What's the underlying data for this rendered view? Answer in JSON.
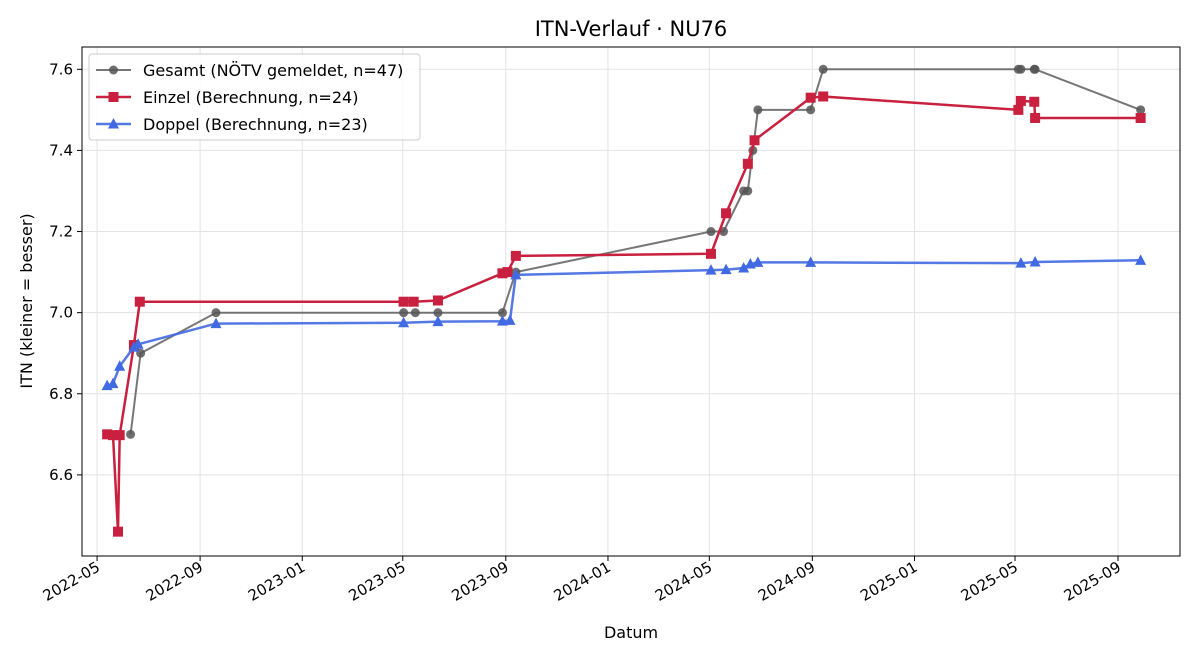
{
  "chart_data": {
    "type": "line",
    "title": "ITN-Verlauf · NU76",
    "xlabel": "Datum",
    "ylabel": "ITN  (kleiner = besser)",
    "x_type": "date",
    "xlim": [
      "2022-04-13",
      "2025-11-14"
    ],
    "ylim": [
      6.4,
      7.655
    ],
    "x_ticks": [
      "2022-05-01",
      "2022-09-01",
      "2023-01-01",
      "2023-05-01",
      "2023-09-01",
      "2024-01-01",
      "2024-05-01",
      "2024-09-01",
      "2025-01-01",
      "2025-05-01",
      "2025-09-01"
    ],
    "x_tick_labels": [
      "2022-05",
      "2022-09",
      "2023-01",
      "2023-05",
      "2023-09",
      "2024-01",
      "2024-05",
      "2024-09",
      "2025-01",
      "2025-05",
      "2025-09"
    ],
    "y_ticks": [
      6.6,
      6.8,
      7.0,
      7.2,
      7.4,
      7.6
    ],
    "y_tick_labels": [
      "6.6",
      "6.8",
      "7.0",
      "7.2",
      "7.4",
      "7.6"
    ],
    "grid": true,
    "legend_position": "top-left",
    "series": [
      {
        "name": "Gesamt (NÖTV gemeldet, n=47)",
        "color": "#555555",
        "marker": "circle",
        "points": [
          {
            "x": "2022-06-10",
            "y": 6.7
          },
          {
            "x": "2022-06-22",
            "y": 6.9
          },
          {
            "x": "2022-09-20",
            "y": 7.0
          },
          {
            "x": "2023-05-02",
            "y": 7.0
          },
          {
            "x": "2023-05-16",
            "y": 7.0
          },
          {
            "x": "2023-06-12",
            "y": 7.0
          },
          {
            "x": "2023-08-28",
            "y": 7.0
          },
          {
            "x": "2023-09-13",
            "y": 7.1
          },
          {
            "x": "2024-05-03",
            "y": 7.2
          },
          {
            "x": "2024-05-18",
            "y": 7.2
          },
          {
            "x": "2024-06-11",
            "y": 7.3
          },
          {
            "x": "2024-06-16",
            "y": 7.3
          },
          {
            "x": "2024-06-22",
            "y": 7.4
          },
          {
            "x": "2024-06-28",
            "y": 7.5
          },
          {
            "x": "2024-08-30",
            "y": 7.5
          },
          {
            "x": "2024-09-14",
            "y": 7.6
          },
          {
            "x": "2025-05-05",
            "y": 7.6
          },
          {
            "x": "2025-05-08",
            "y": 7.6
          },
          {
            "x": "2025-05-24",
            "y": 7.6
          },
          {
            "x": "2025-05-25",
            "y": 7.6
          },
          {
            "x": "2025-09-28",
            "y": 7.5
          }
        ]
      },
      {
        "name": "Einzel (Berechnung, n=24)",
        "color": "#c8203e",
        "marker": "square",
        "points": [
          {
            "x": "2022-05-13",
            "y": 6.7
          },
          {
            "x": "2022-05-20",
            "y": 6.698
          },
          {
            "x": "2022-05-26",
            "y": 6.46
          },
          {
            "x": "2022-05-28",
            "y": 6.698
          },
          {
            "x": "2022-06-14",
            "y": 6.92
          },
          {
            "x": "2022-06-21",
            "y": 7.027
          },
          {
            "x": "2023-05-02",
            "y": 7.027
          },
          {
            "x": "2023-05-14",
            "y": 7.027
          },
          {
            "x": "2023-06-12",
            "y": 7.03
          },
          {
            "x": "2023-08-28",
            "y": 7.097
          },
          {
            "x": "2023-09-03",
            "y": 7.1
          },
          {
            "x": "2023-09-13",
            "y": 7.14
          },
          {
            "x": "2024-05-03",
            "y": 7.145
          },
          {
            "x": "2024-05-21",
            "y": 7.245
          },
          {
            "x": "2024-06-16",
            "y": 7.367
          },
          {
            "x": "2024-06-24",
            "y": 7.425
          },
          {
            "x": "2024-08-30",
            "y": 7.53
          },
          {
            "x": "2024-09-14",
            "y": 7.533
          },
          {
            "x": "2025-05-05",
            "y": 7.5
          },
          {
            "x": "2025-05-08",
            "y": 7.522
          },
          {
            "x": "2025-05-24",
            "y": 7.52
          },
          {
            "x": "2025-05-25",
            "y": 7.48
          },
          {
            "x": "2025-09-28",
            "y": 7.48
          }
        ]
      },
      {
        "name": "Doppel (Berechnung, n=23)",
        "color": "#4169e1",
        "marker": "triangle",
        "points": [
          {
            "x": "2022-05-13",
            "y": 6.82
          },
          {
            "x": "2022-05-20",
            "y": 6.825
          },
          {
            "x": "2022-05-28",
            "y": 6.868
          },
          {
            "x": "2022-06-14",
            "y": 6.915
          },
          {
            "x": "2022-06-19",
            "y": 6.922
          },
          {
            "x": "2022-09-20",
            "y": 6.973
          },
          {
            "x": "2023-05-02",
            "y": 6.975
          },
          {
            "x": "2023-06-12",
            "y": 6.978
          },
          {
            "x": "2023-08-28",
            "y": 6.979
          },
          {
            "x": "2023-09-06",
            "y": 6.981
          },
          {
            "x": "2023-09-13",
            "y": 7.093
          },
          {
            "x": "2024-05-03",
            "y": 7.105
          },
          {
            "x": "2024-05-21",
            "y": 7.106
          },
          {
            "x": "2024-06-11",
            "y": 7.11
          },
          {
            "x": "2024-06-19",
            "y": 7.12
          },
          {
            "x": "2024-06-28",
            "y": 7.124
          },
          {
            "x": "2024-08-30",
            "y": 7.124
          },
          {
            "x": "2025-05-08",
            "y": 7.122
          },
          {
            "x": "2025-05-25",
            "y": 7.125
          },
          {
            "x": "2025-09-28",
            "y": 7.129
          }
        ]
      }
    ]
  }
}
